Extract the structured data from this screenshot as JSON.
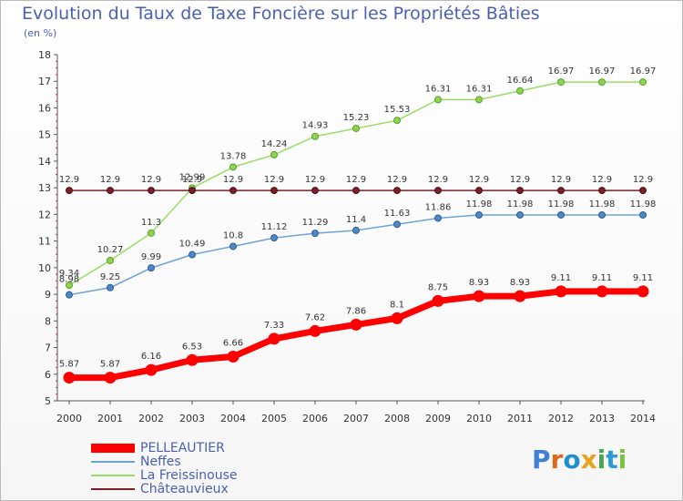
{
  "header": {
    "title": "Evolution du Taux de Taxe Foncière sur les Propriétés Bâties",
    "unit": "(en %)"
  },
  "logo": {
    "text": "Proxiti",
    "colors": [
      "#3f7fd6",
      "#e06a1b",
      "#1f8fd0",
      "#e8a21c",
      "#4aa84a",
      "#2e9bd6",
      "#7ac142"
    ]
  },
  "chart_data": {
    "type": "line",
    "x": [
      2000,
      2001,
      2002,
      2003,
      2004,
      2005,
      2006,
      2007,
      2008,
      2009,
      2010,
      2011,
      2012,
      2013,
      2014
    ],
    "ylim": [
      5,
      18
    ],
    "yticks": [
      5,
      6,
      7,
      8,
      9,
      10,
      11,
      12,
      13,
      14,
      15,
      16,
      17,
      18
    ],
    "grid": false,
    "legend_position": "bottom-left",
    "series": [
      {
        "name": "PELLEAUTIER",
        "color": "#ff0000",
        "labels": [
          "5.87",
          "5.87",
          "6.16",
          "6.53",
          "6.66",
          "7.33",
          "7.62",
          "7.86",
          "8.1",
          "8.75",
          "8.93",
          "8.93",
          "9.11",
          "9.11",
          "9.11"
        ],
        "values": [
          5.87,
          5.87,
          6.16,
          6.53,
          6.66,
          7.33,
          7.62,
          7.86,
          8.1,
          8.75,
          8.93,
          8.93,
          9.11,
          9.11,
          9.11
        ]
      },
      {
        "name": "Neffes",
        "color": "#6fa3d6",
        "labels": [
          "8.98",
          "9.25",
          "9.99",
          "10.49",
          "10.8",
          "11.12",
          "11.29",
          "11.4",
          "11.63",
          "11.86",
          "11.98",
          "11.98",
          "11.98",
          "11.98",
          "11.98"
        ],
        "values": [
          8.98,
          9.25,
          9.99,
          10.49,
          10.8,
          11.12,
          11.29,
          11.4,
          11.63,
          11.86,
          11.98,
          11.98,
          11.98,
          11.98,
          11.98
        ]
      },
      {
        "name": "La Freissinouse",
        "color": "#99dd66",
        "labels": [
          "9.34",
          "10.27",
          "11.3",
          "12.99",
          "13.78",
          "14.24",
          "14.93",
          "15.23",
          "15.53",
          "16.31",
          "16.31",
          "16.64",
          "16.97",
          "16.97",
          "16.97"
        ],
        "values": [
          9.34,
          10.27,
          11.3,
          12.99,
          13.78,
          14.24,
          14.93,
          15.23,
          15.53,
          16.31,
          16.31,
          16.64,
          16.97,
          16.97,
          16.97
        ]
      },
      {
        "name": "Châteauvieux",
        "color": "#7a1f2a",
        "labels": [
          "12.9",
          "12.9",
          "12.9",
          "12.9",
          "12.9",
          "12.9",
          "12.9",
          "12.9",
          "12.9",
          "12.9",
          "12.9",
          "12.9",
          "12.9",
          "12.9",
          "12.9"
        ],
        "values": [
          12.9,
          12.9,
          12.9,
          12.9,
          12.9,
          12.9,
          12.9,
          12.9,
          12.9,
          12.9,
          12.9,
          12.9,
          12.9,
          12.9,
          12.9
        ]
      }
    ]
  }
}
